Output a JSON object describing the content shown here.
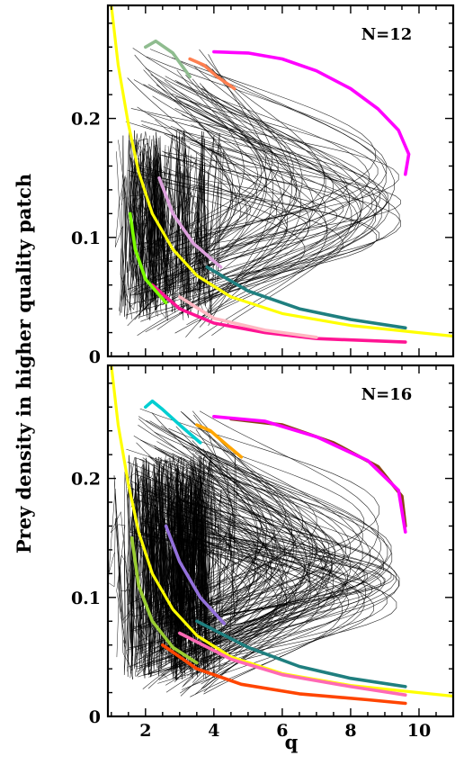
{
  "chart_data": [
    {
      "type": "line",
      "panel_label": "N=12",
      "xlabel": "",
      "ylabel": "Prey density in higher quality patch",
      "xlim": [
        0.9,
        11
      ],
      "ylim": [
        0,
        0.295
      ],
      "x_ticks": [
        2,
        4,
        6,
        8,
        10
      ],
      "x_ticklabels": [],
      "y_ticks": [
        0,
        0.1,
        0.2
      ],
      "y_ticklabels": [
        "0",
        "0.1",
        "0.2"
      ],
      "grid": false,
      "series": [
        {
          "color": "#ffff00",
          "x": [
            1.0,
            1.2,
            1.5,
            1.8,
            2.2,
            2.8,
            3.5,
            4.5,
            6.0,
            8.0,
            10.0,
            11.0
          ],
          "y": [
            0.295,
            0.245,
            0.195,
            0.155,
            0.12,
            0.09,
            0.068,
            0.05,
            0.036,
            0.026,
            0.02,
            0.017
          ]
        },
        {
          "color": "#ff00ff",
          "x": [
            4.0,
            5.0,
            6.0,
            7.0,
            8.0,
            8.8,
            9.4,
            9.7,
            9.6
          ],
          "y": [
            0.256,
            0.255,
            0.25,
            0.24,
            0.225,
            0.208,
            0.19,
            0.17,
            0.153
          ]
        },
        {
          "color": "#1f7f7f",
          "x": [
            3.8,
            5.0,
            6.5,
            8.0,
            9.6
          ],
          "y": [
            0.075,
            0.055,
            0.04,
            0.031,
            0.024
          ]
        },
        {
          "color": "#ff1493",
          "x": [
            2.2,
            3.0,
            4.0,
            5.5,
            7.0,
            9.6
          ],
          "y": [
            0.06,
            0.04,
            0.028,
            0.02,
            0.015,
            0.012
          ]
        },
        {
          "color": "#ffb6c1",
          "x": [
            3.0,
            4.0,
            5.5,
            7.0
          ],
          "y": [
            0.05,
            0.032,
            0.022,
            0.016
          ]
        },
        {
          "color": "#7cfc00",
          "x": [
            1.55,
            1.7,
            2.0,
            2.6
          ],
          "y": [
            0.12,
            0.09,
            0.065,
            0.045
          ]
        },
        {
          "color": "#8fbc8f",
          "x": [
            2.0,
            2.3,
            2.8,
            3.3
          ],
          "y": [
            0.26,
            0.265,
            0.255,
            0.235
          ]
        },
        {
          "color": "#ff7f50",
          "x": [
            3.3,
            3.7,
            4.1,
            4.6
          ],
          "y": [
            0.25,
            0.245,
            0.235,
            0.225
          ]
        },
        {
          "color": "#dda0dd",
          "x": [
            2.4,
            2.8,
            3.4,
            4.2
          ],
          "y": [
            0.15,
            0.12,
            0.095,
            0.075
          ]
        }
      ]
    },
    {
      "type": "line",
      "panel_label": "N=16",
      "xlabel": "q",
      "ylabel": "Prey density in higher quality patch",
      "xlim": [
        0.9,
        11
      ],
      "ylim": [
        0,
        0.295
      ],
      "x_ticks": [
        2,
        4,
        6,
        8,
        10
      ],
      "x_ticklabels": [
        "2",
        "4",
        "6",
        "8",
        "10"
      ],
      "y_ticks": [
        0,
        0.1,
        0.2
      ],
      "y_ticklabels": [
        "0",
        "0.1",
        "0.2"
      ],
      "grid": false,
      "series": [
        {
          "color": "#ffff00",
          "x": [
            1.0,
            1.2,
            1.5,
            1.8,
            2.2,
            2.8,
            3.5,
            4.5,
            6.0,
            8.0,
            10.0,
            11.0
          ],
          "y": [
            0.295,
            0.245,
            0.195,
            0.155,
            0.12,
            0.09,
            0.068,
            0.05,
            0.036,
            0.026,
            0.02,
            0.017
          ]
        },
        {
          "color": "#8b4513",
          "x": [
            4.5,
            6.0,
            7.5,
            8.8,
            9.5,
            9.6
          ],
          "y": [
            0.25,
            0.245,
            0.23,
            0.21,
            0.185,
            0.16
          ]
        },
        {
          "color": "#ff00ff",
          "x": [
            4.0,
            5.5,
            7.0,
            8.5,
            9.4,
            9.6
          ],
          "y": [
            0.252,
            0.248,
            0.235,
            0.215,
            0.19,
            0.155
          ]
        },
        {
          "color": "#1f7f7f",
          "x": [
            3.5,
            5.0,
            6.5,
            8.0,
            9.6
          ],
          "y": [
            0.08,
            0.058,
            0.042,
            0.032,
            0.025
          ]
        },
        {
          "color": "#ff69b4",
          "x": [
            3.0,
            4.5,
            6.0,
            8.0,
            9.6
          ],
          "y": [
            0.07,
            0.048,
            0.035,
            0.025,
            0.018
          ]
        },
        {
          "color": "#00ced1",
          "x": [
            2.0,
            2.2,
            2.5,
            3.0,
            3.6
          ],
          "y": [
            0.26,
            0.265,
            0.258,
            0.245,
            0.23
          ]
        },
        {
          "color": "#ff4500",
          "x": [
            2.5,
            3.5,
            4.8,
            6.5,
            8.5,
            9.6
          ],
          "y": [
            0.06,
            0.04,
            0.027,
            0.019,
            0.014,
            0.011
          ]
        },
        {
          "color": "#9acd32",
          "x": [
            1.6,
            1.8,
            2.2,
            2.8,
            3.5
          ],
          "y": [
            0.15,
            0.11,
            0.08,
            0.058,
            0.045
          ]
        },
        {
          "color": "#9370db",
          "x": [
            2.6,
            3.0,
            3.6,
            4.3
          ],
          "y": [
            0.16,
            0.13,
            0.1,
            0.078
          ]
        },
        {
          "color": "#ffa500",
          "x": [
            3.5,
            3.9,
            4.3,
            4.8
          ],
          "y": [
            0.245,
            0.24,
            0.23,
            0.218
          ]
        }
      ]
    }
  ]
}
